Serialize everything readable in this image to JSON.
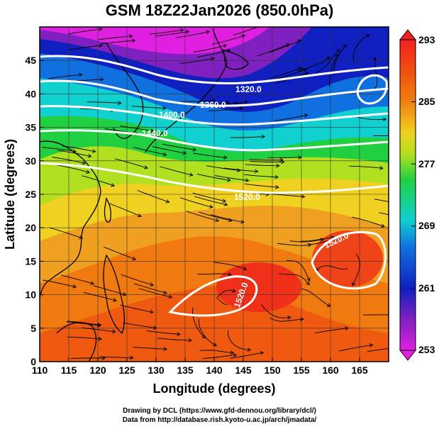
{
  "title": "GSM 18Z22Jan2026 (850.0hPa)",
  "xaxis": {
    "label": "Longitude (degrees)",
    "range": [
      110,
      170
    ],
    "ticks": [
      "110",
      "115",
      "120",
      "125",
      "130",
      "135",
      "140",
      "145",
      "150",
      "155",
      "160",
      "165"
    ]
  },
  "yaxis": {
    "label": "Latitude  (degrees)",
    "range": [
      0,
      50
    ],
    "ticks": [
      "0",
      "5",
      "10",
      "15",
      "20",
      "25",
      "30",
      "35",
      "40",
      "45"
    ]
  },
  "colorbar": {
    "labels": [
      "293",
      "285",
      "277",
      "269",
      "261",
      "253"
    ],
    "range": [
      253,
      293
    ],
    "colors": [
      "#e020e0",
      "#8020c0",
      "#1020c0",
      "#1070e0",
      "#10d0d0",
      "#20d040",
      "#b0e020",
      "#f0d020",
      "#f08010",
      "#f05010",
      "#f02020"
    ]
  },
  "contours": {
    "color": "#ffffff",
    "labels": [
      "1320.0",
      "1360.0",
      "1400.0",
      "1440.0",
      "1520.0",
      "1520.0",
      "1520.0"
    ]
  },
  "credits": {
    "line1": "Drawing by DCL (https://www.gfd-dennou.org/library/dcl/)",
    "line2": "Data from http://database.rish.kyoto-u.ac.jp/arch/jmadata/"
  }
}
